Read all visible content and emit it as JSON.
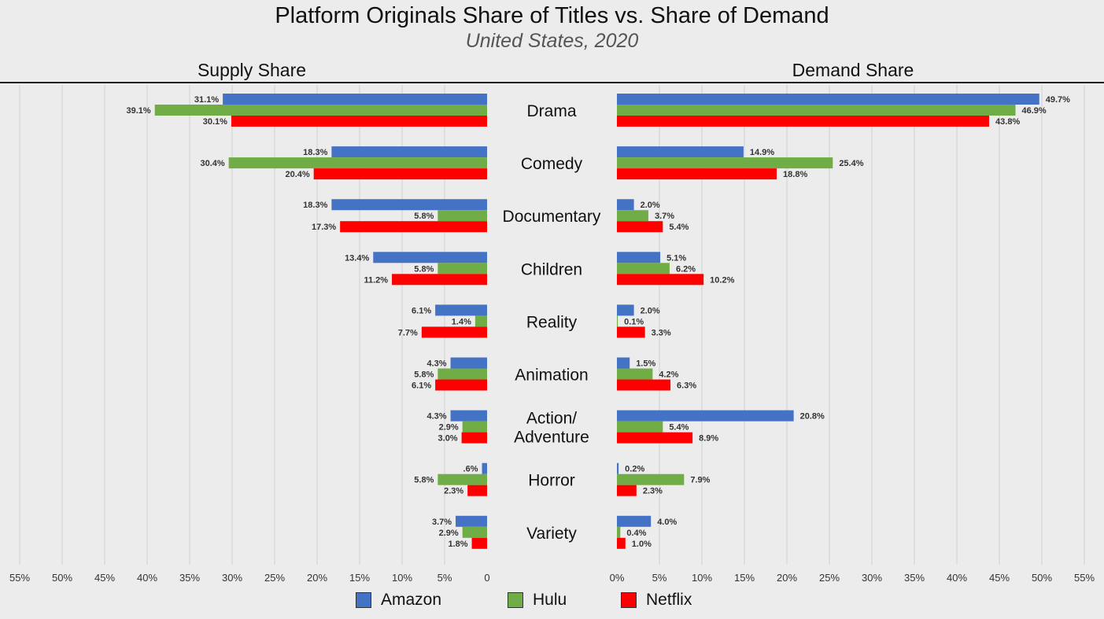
{
  "chart_data": {
    "type": "bar",
    "orientation": "horizontal",
    "title": "Platform Originals Share of Titles vs. Share of Demand",
    "subtitle": "United States, 2020",
    "panels": [
      {
        "name": "Supply Share",
        "direction": "left"
      },
      {
        "name": "Demand Share",
        "direction": "right"
      }
    ],
    "categories": [
      "Drama",
      "Comedy",
      "Documentary",
      "Children",
      "Reality",
      "Animation",
      "Action/\nAdventure",
      "Horror",
      "Variety"
    ],
    "series": [
      {
        "name": "Amazon",
        "color": "#4472c4",
        "supply": [
          31.1,
          18.3,
          18.3,
          13.4,
          6.1,
          4.3,
          4.3,
          0.6,
          3.7
        ],
        "supply_labels": [
          "31.1%",
          "18.3%",
          "18.3%",
          "13.4%",
          "6.1%",
          "4.3%",
          "4.3%",
          ".6%",
          "3.7%"
        ],
        "demand": [
          49.7,
          14.9,
          2.0,
          5.1,
          2.0,
          1.5,
          20.8,
          0.2,
          4.0
        ],
        "demand_labels": [
          "49.7%",
          "14.9%",
          "2.0%",
          "5.1%",
          "2.0%",
          "1.5%",
          "20.8%",
          "0.2%",
          "4.0%"
        ]
      },
      {
        "name": "Hulu",
        "color": "#70ad47",
        "supply": [
          39.1,
          30.4,
          5.8,
          5.8,
          1.4,
          5.8,
          2.9,
          5.8,
          2.9
        ],
        "supply_labels": [
          "39.1%",
          "30.4%",
          "5.8%",
          "5.8%",
          "1.4%",
          "5.8%",
          "2.9%",
          "5.8%",
          "2.9%"
        ],
        "demand": [
          46.9,
          25.4,
          3.7,
          6.2,
          0.1,
          4.2,
          5.4,
          7.9,
          0.4
        ],
        "demand_labels": [
          "46.9%",
          "25.4%",
          "3.7%",
          "6.2%",
          "0.1%",
          "4.2%",
          "5.4%",
          "7.9%",
          "0.4%"
        ]
      },
      {
        "name": "Netflix",
        "color": "#ff0000",
        "supply": [
          30.1,
          20.4,
          17.3,
          11.2,
          7.7,
          6.1,
          3.0,
          2.3,
          1.8
        ],
        "supply_labels": [
          "30.1%",
          "20.4%",
          "17.3%",
          "11.2%",
          "7.7%",
          "6.1%",
          "3.0%",
          "2.3%",
          "1.8%"
        ],
        "demand": [
          43.8,
          18.8,
          5.4,
          10.2,
          3.3,
          6.3,
          8.9,
          2.3,
          1.0
        ],
        "demand_labels": [
          "43.8%",
          "18.8%",
          "5.4%",
          "10.2%",
          "3.3%",
          "6.3%",
          "8.9%",
          "2.3%",
          "1.0%"
        ]
      }
    ],
    "supply_ticks": [
      "55%",
      "50%",
      "45%",
      "40%",
      "35%",
      "30%",
      "25%",
      "20%",
      "15%",
      "10%",
      "5%",
      "0"
    ],
    "demand_ticks": [
      "0%",
      "5%",
      "10%",
      "15%",
      "20%",
      "25%",
      "30%",
      "35%",
      "40%",
      "45%",
      "50%",
      "55%"
    ],
    "xlim": [
      0,
      55
    ],
    "grid": true,
    "legend": "bottom"
  }
}
